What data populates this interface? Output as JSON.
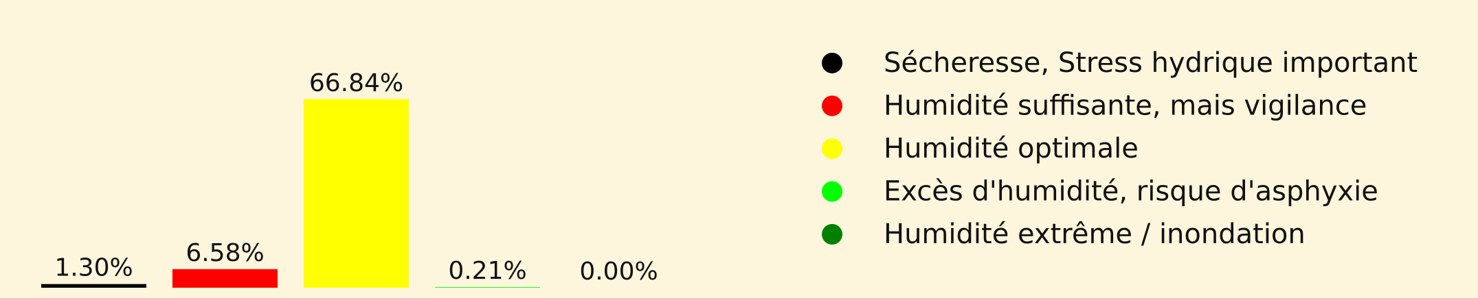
{
  "chart_data": {
    "type": "bar",
    "categories": [
      "Sécheresse, Stress hydrique important",
      "Humidité suffisante, mais vigilance",
      "Humidité optimale",
      "Excès d'humidité, risque d'asphyxie",
      "Humidité extrême / inondation"
    ],
    "values": [
      1.3,
      6.58,
      66.84,
      0.21,
      0.0
    ],
    "value_labels": [
      "1.30%",
      "6.58%",
      "66.84%",
      "0.21%",
      "0.00%"
    ],
    "colors": [
      "#000000",
      "#ff0000",
      "#ffff00",
      "#00ff00",
      "#008000"
    ],
    "title": "",
    "xlabel": "",
    "ylabel": "",
    "ylim": [
      0,
      68
    ],
    "grid": false,
    "axes_visible": false,
    "legend": {
      "position": "right",
      "entries": [
        "Sécheresse, Stress hydrique important",
        "Humidité suffisante, mais vigilance",
        "Humidité optimale",
        "Excès d'humidité, risque d'asphyxie",
        "Humidité extrême / inondation"
      ]
    }
  },
  "background_color": "#fdf6dc"
}
